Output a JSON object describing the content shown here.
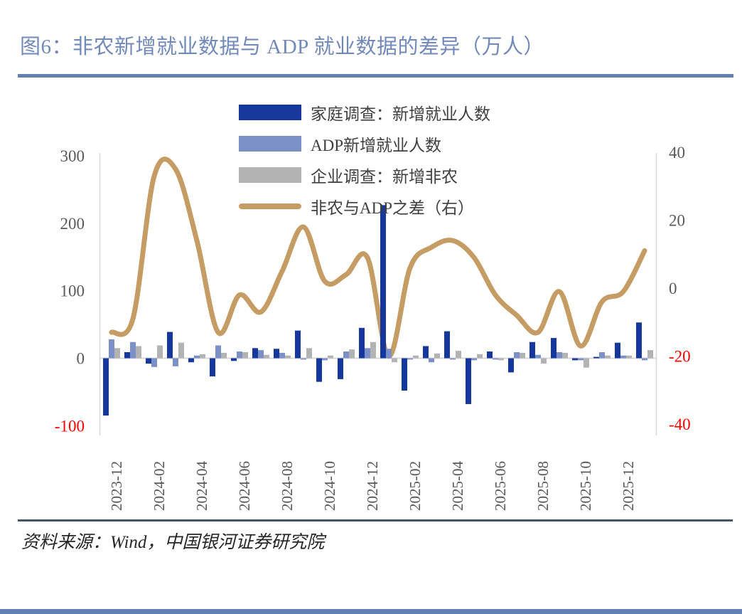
{
  "page": {
    "title": "图6：非农新增就业数据与 ADP 就业数据的差异（万人）",
    "source": "资料来源：Wind，中国银河证券研究院"
  },
  "colors": {
    "title_text": "#7289bb",
    "title_rule": "#6280b4",
    "source_rule": "#44546a",
    "bottom_band": "#6280b4",
    "axis_text": "#595959",
    "axis_text_negative": "#ff0000",
    "frame_line": "#d9d9d9",
    "zero_line": "#d9d9d9",
    "bar_household": "#16389d",
    "bar_adp": "#7b90c6",
    "bar_establishment": "#b3b3b3",
    "line_diff": "#c59d64"
  },
  "legend": {
    "items": [
      {
        "label": "家庭调查：新增就业人数",
        "color": "#16389d",
        "type": "bar"
      },
      {
        "label": "ADP新增就业人数",
        "color": "#7b90c6",
        "type": "bar"
      },
      {
        "label": "企业调查：新增非农",
        "color": "#b3b3b3",
        "type": "bar"
      },
      {
        "label": "非农与ADP之差（右）",
        "color": "#c59d64",
        "type": "line"
      }
    ]
  },
  "chart_data": {
    "type": "bar",
    "subtype": "combo-bar-line",
    "title": "非农新增就业数据与 ADP 就业数据的差异（万人）",
    "unit": "万人",
    "grid": false,
    "legend_position": "top-center-stacked",
    "months": [
      "2023-12",
      "2024-01",
      "2024-02",
      "2024-03",
      "2024-04",
      "2024-05",
      "2024-06",
      "2024-07",
      "2024-08",
      "2024-09",
      "2024-10",
      "2024-11",
      "2024-12",
      "2025-01",
      "2025-02",
      "2025-03",
      "2025-04",
      "2025-05",
      "2025-06",
      "2025-07",
      "2025-08",
      "2025-09",
      "2025-10",
      "2025-11",
      "2025-12",
      "2026-01"
    ],
    "x_tick_labels": [
      "2023-12",
      "2024-02",
      "2024-04",
      "2024-06",
      "2024-08",
      "2024-10",
      "2024-12",
      "2025-02",
      "2025-04",
      "2025-06",
      "2025-08",
      "2025-10",
      "2025-12"
    ],
    "left_axis": {
      "ticks": [
        300,
        200,
        100,
        0,
        -100
      ],
      "range": [
        -100,
        300
      ]
    },
    "right_axis": {
      "ticks": [
        40,
        20,
        0,
        -20,
        -40
      ],
      "range": [
        -40,
        40
      ]
    },
    "series": [
      {
        "name": "家庭调查：新增就业人数",
        "type": "bar",
        "axis": "left",
        "color": "#16389d",
        "values": [
          -85,
          9,
          -8,
          39,
          -6,
          -27,
          -4,
          15,
          14,
          41,
          -35,
          -31,
          45,
          227,
          -48,
          18,
          40,
          -68,
          10,
          -21,
          24,
          30,
          -3,
          2,
          23,
          53
        ]
      },
      {
        "name": "ADP新增就业人数",
        "type": "bar",
        "axis": "left",
        "color": "#7b90c6",
        "values": [
          28,
          24,
          -13,
          -12,
          4,
          19,
          10,
          12,
          8,
          -2,
          -3,
          10,
          15,
          14,
          -2,
          -6,
          -2,
          -3,
          -2,
          9,
          5,
          9,
          -3,
          9,
          4,
          -3
        ]
      },
      {
        "name": "企业调查：新增非农",
        "type": "bar",
        "axis": "left",
        "color": "#b3b3b3",
        "values": [
          15,
          18,
          19,
          23,
          6,
          8,
          9,
          5,
          4,
          15,
          4,
          13,
          24,
          -6,
          4,
          7,
          11,
          6,
          -3,
          8,
          -8,
          8,
          -14,
          4,
          4,
          12
        ]
      },
      {
        "name": "非农与ADP之差（右）",
        "type": "line",
        "axis": "right",
        "color": "#c59d64",
        "values": [
          -13,
          -9,
          33,
          35,
          14,
          -13,
          -2,
          -7,
          5,
          18,
          2,
          4,
          9,
          -20,
          6,
          12,
          14,
          9,
          -2,
          -8,
          -13,
          -1,
          -17,
          -4,
          -1,
          11
        ]
      }
    ]
  }
}
